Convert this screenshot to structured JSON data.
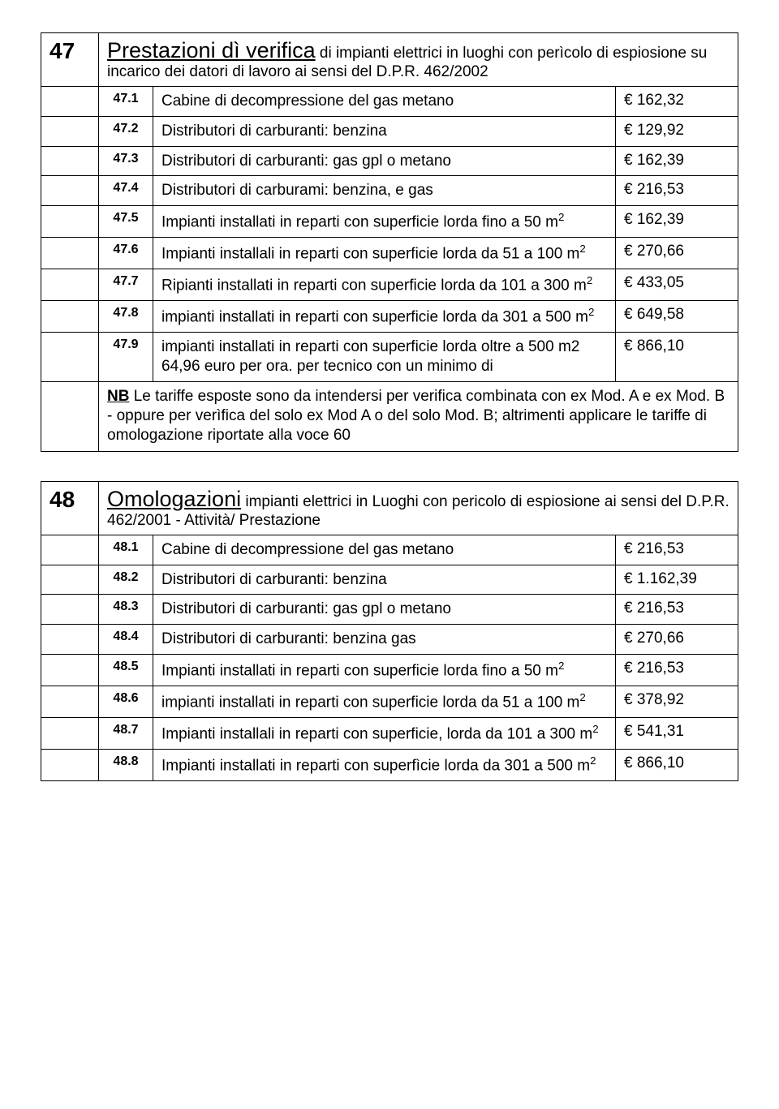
{
  "section47": {
    "number": "47",
    "title_big": "Prestazioni dì verifica",
    "title_rest": " di impianti elettrici in luoghi con perìcolo di espiosione su incarico dei datori di lavoro ai sensi del D.P.R. 462/2002",
    "rows": [
      {
        "id": "47.1",
        "desc": "Cabine di decompressione del gas metano",
        "price": "€ 162,32"
      },
      {
        "id": "47.2",
        "desc": "Distributori di carburanti: benzina",
        "price": "€ 129,92"
      },
      {
        "id": "47.3",
        "desc": "Distributori di carburanti: gas gpl o metano",
        "price": "€ 162,39"
      },
      {
        "id": "47.4",
        "desc": "Distributori di carburami: benzina, e gas",
        "price": "€ 216,53"
      },
      {
        "id": "47.5",
        "desc": "Impianti installati in reparti con superficie lorda fino a 50 m",
        "sup": "2",
        "price": "€ 162,39"
      },
      {
        "id": "47.6",
        "desc": "Impianti installali in reparti con superficie lorda da 51 a 100 m",
        "sup": "2",
        "price": "€ 270,66"
      },
      {
        "id": "47.7",
        "desc": "Ripianti installati in reparti con superficie lorda da 101 a 300 m",
        "sup": "2",
        "price": "€ 433,05"
      },
      {
        "id": "47.8",
        "desc": "impianti installati in reparti con superficie lorda da 301 a 500 m",
        "sup": "2",
        "price": "€ 649,58"
      },
      {
        "id": "47.9",
        "desc": "impianti installati in reparti con superficie lorda oltre a   500 m2  64,96 euro per ora. per tecnico con un minimo di",
        "price": "€ 866,10"
      }
    ],
    "note_nb": "NB",
    "note_rest": " Le tariffe esposte sono da intendersi per verifica combinata con ex Mod. A e ex Mod. B -  oppure per verìfica del solo ex Mod A o del solo Mod. B; altrimenti applicare le tariffe di omologazione riportate alla voce 60"
  },
  "section48": {
    "number": "48",
    "title_big": "Omologazioni",
    "title_rest": " impianti elettrici in Luoghi con pericolo di espiosione ai sensi del D.P.R. 462/2001 - Attività/ Prestazione",
    "rows": [
      {
        "id": "48.1",
        "desc": "Cabine di decompressione del gas metano",
        "price": "€ 216,53"
      },
      {
        "id": "48.2",
        "desc": "Distributori di carburanti: benzina",
        "price": "€ 1.162,39"
      },
      {
        "id": "48.3",
        "desc": "Distributori di carburanti: gas gpl o metano",
        "price": "€ 216,53"
      },
      {
        "id": "48.4",
        "desc": "Distributori di carburanti: benzina gas",
        "price": "€ 270,66"
      },
      {
        "id": "48.5",
        "desc": "Impianti installati in reparti con superficie lorda fino a 50 m",
        "sup": "2",
        "price": "€ 216,53"
      },
      {
        "id": "48.6",
        "desc": "impianti installati in reparti con superficie lorda da 51 a 100 m",
        "sup": "2",
        "price": "€ 378,92"
      },
      {
        "id": "48.7",
        "desc": "Impianti installali in reparti con superficie, lorda da 101 a 300 m",
        "sup": "2",
        "price": "€ 541,31"
      },
      {
        "id": "48.8",
        "desc": "Impianti installati in reparti con superfìcie lorda da 301 a 500 m",
        "sup": "2",
        "price": "€ 866,10"
      }
    ]
  }
}
